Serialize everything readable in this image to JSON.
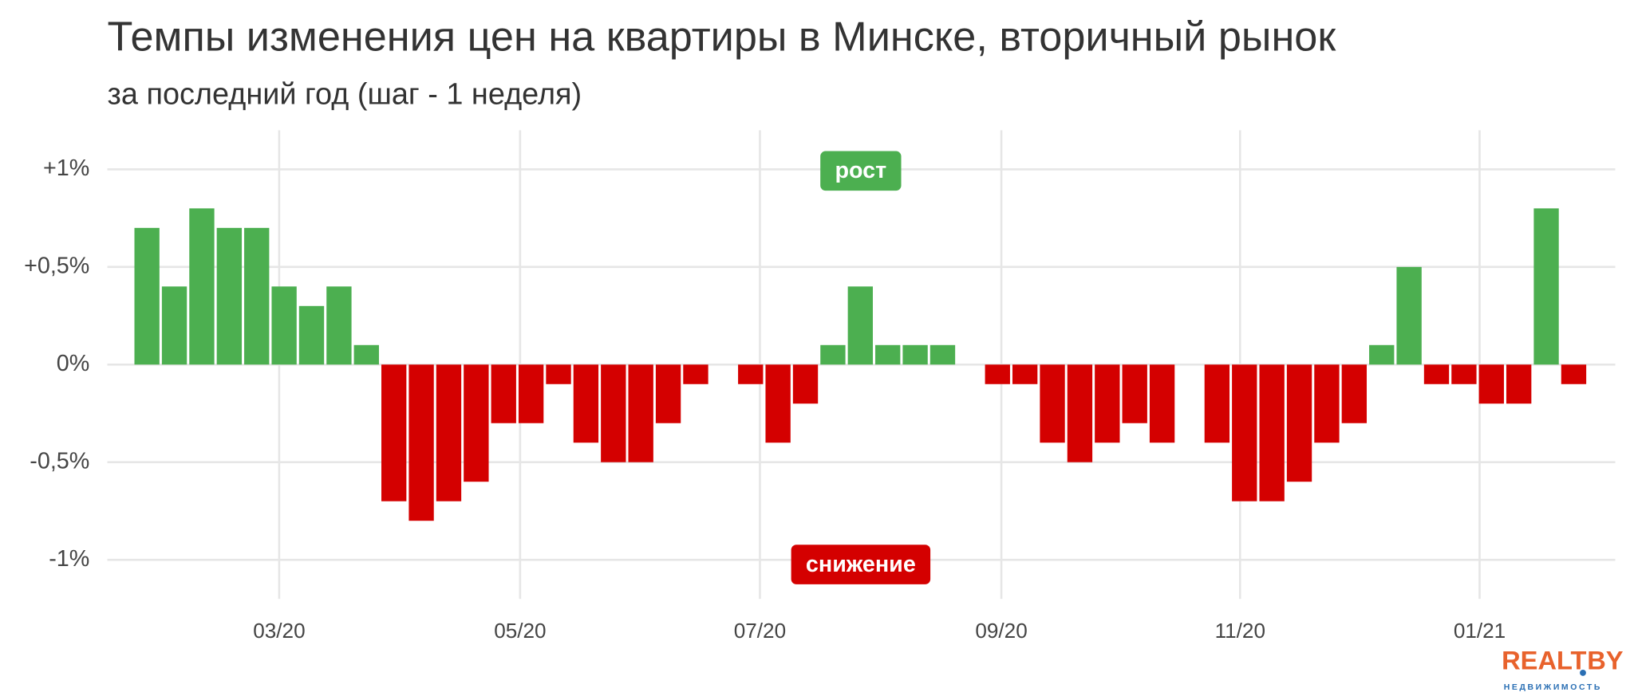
{
  "chart_data": {
    "type": "bar",
    "title": "Темпы изменения цен на квартиры в Минске, вторичный рынок",
    "subtitle": "за последний год (шаг - 1 неделя)",
    "categories": [
      null,
      null,
      null,
      null,
      null,
      null,
      null,
      null,
      null,
      null,
      null,
      null,
      null,
      null,
      null,
      null,
      null,
      null,
      null,
      null,
      null,
      null,
      null,
      null,
      null,
      null,
      null,
      null,
      null,
      null,
      null,
      null,
      null,
      null,
      null,
      null,
      null,
      null,
      null,
      null,
      null,
      null,
      null,
      null,
      null,
      null,
      null,
      null,
      null,
      null,
      null,
      null,
      null
    ],
    "values": [
      0.7,
      0.4,
      0.8,
      0.7,
      0.7,
      0.4,
      0.3,
      0.4,
      0.1,
      -0.7,
      -0.8,
      -0.7,
      -0.6,
      -0.3,
      -0.3,
      -0.1,
      -0.4,
      -0.5,
      -0.5,
      -0.3,
      -0.1,
      0,
      -0.1,
      -0.4,
      -0.2,
      0.1,
      0.4,
      0.1,
      0.1,
      0.1,
      0,
      -0.1,
      -0.1,
      -0.4,
      -0.5,
      -0.4,
      -0.3,
      -0.4,
      0,
      -0.4,
      -0.7,
      -0.7,
      -0.6,
      -0.4,
      -0.3,
      0.1,
      0.5,
      -0.1,
      -0.1,
      -0.2,
      -0.2,
      0.8,
      -0.1
    ],
    "positive_color": "#4caf50",
    "negative_color": "#d40000",
    "ylim": [
      -1.2,
      1.2
    ],
    "yticks": [
      {
        "value": -1,
        "label": "-1%"
      },
      {
        "value": -0.5,
        "label": "-0,5%"
      },
      {
        "value": 0,
        "label": "0%"
      },
      {
        "value": 0.5,
        "label": "+0,5%"
      },
      {
        "value": 1,
        "label": "+1%"
      }
    ],
    "xticks": [
      {
        "value": 4.82,
        "label": "03/20"
      },
      {
        "value": 13.6,
        "label": "05/20"
      },
      {
        "value": 22.34,
        "label": "07/20"
      },
      {
        "value": 31.14,
        "label": "09/20"
      },
      {
        "value": 39.84,
        "label": "11/20"
      },
      {
        "value": 48.57,
        "label": "01/21"
      }
    ],
    "grid": true,
    "annotations": [
      {
        "text": "рост",
        "color": "#4caf50"
      },
      {
        "text": "снижение",
        "color": "#d40000"
      }
    ]
  },
  "logo": {
    "name": "REALT",
    "suffix": "BY",
    "tagline": "НЕДВИЖИМОСТЬ"
  }
}
